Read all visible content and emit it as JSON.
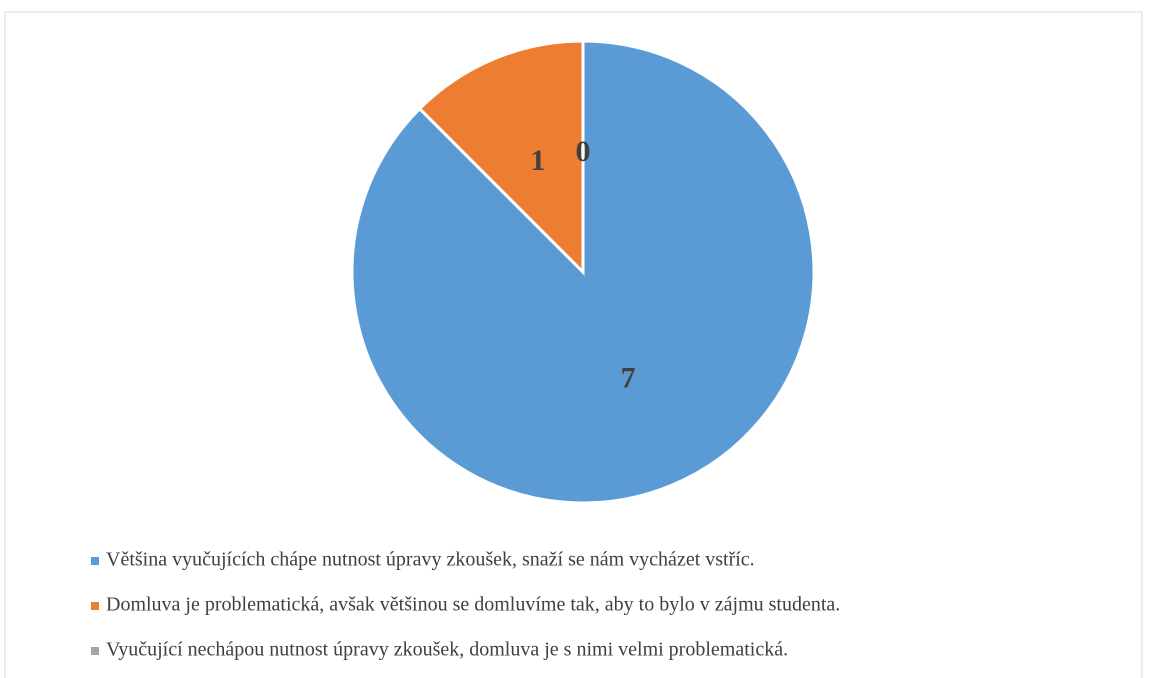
{
  "chart_data": {
    "type": "pie",
    "categories": [
      "Většina vyučujících chápe nutnost úpravy zkoušek, snaží se nám vycházet vstříc.",
      "Domluva je problematická, avšak většinou se domluvíme tak, aby to bylo v zájmu studenta.",
      "Vyučující nechápou nutnost úpravy zkoušek, domluva je s nimi velmi problematická."
    ],
    "values": [
      7,
      1,
      0
    ],
    "colors": [
      "#5b9bd5",
      "#ed7d31",
      "#a5a5a5"
    ],
    "legend": "bottom"
  }
}
